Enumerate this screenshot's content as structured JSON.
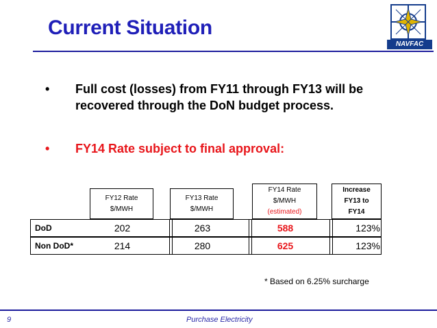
{
  "title": "Current Situation",
  "logo": {
    "text": "NAVFAC",
    "icon": "compass-star-logo-icon"
  },
  "bullets": [
    {
      "marker": "•",
      "text": "Full cost (losses) from FY11 through FY13 will be recovered through the DoN budget process."
    },
    {
      "marker": "•",
      "text": "FY14 Rate subject to final approval:"
    }
  ],
  "table": {
    "headers": [
      {
        "line1": "FY12 Rate",
        "line2": "$/MWH"
      },
      {
        "line1": "FY13 Rate",
        "line2": "$/MWH"
      },
      {
        "line1": "FY14 Rate",
        "line2": "$/MWH",
        "line3": "(estimated)"
      },
      {
        "line1": "Increase",
        "line2": "FY13 to",
        "line3": "FY14"
      }
    ],
    "rows": [
      {
        "label": "DoD",
        "fy12": "202",
        "fy13": "263",
        "fy14": "588",
        "increase": "123%"
      },
      {
        "label": "Non DoD*",
        "fy12": "214",
        "fy13": "280",
        "fy14": "625",
        "increase": "123%"
      }
    ],
    "accent_color": "#e8161b"
  },
  "footnote": "* Based on 6.25% surcharge",
  "footer": {
    "page": "9",
    "title": "Purchase Electricity"
  },
  "colors": {
    "title": "#1f1fb8",
    "rule": "#1a1a9c",
    "highlight": "#e8161b"
  }
}
